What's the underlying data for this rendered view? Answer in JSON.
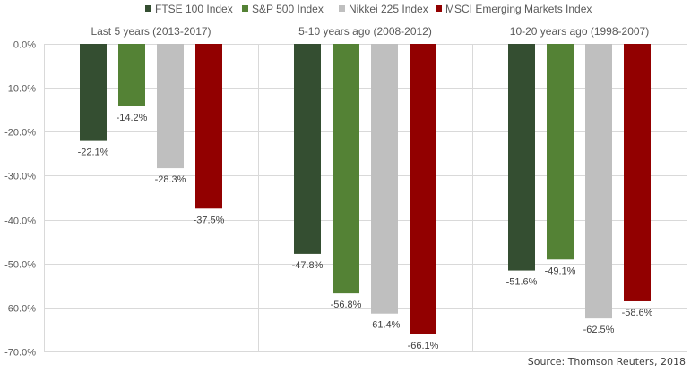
{
  "chart_data": {
    "type": "bar",
    "title": "",
    "xlabel": "",
    "ylabel": "",
    "ylim": [
      -70,
      0
    ],
    "yticks": [
      0,
      -10,
      -20,
      -30,
      -40,
      -50,
      -60,
      -70
    ],
    "ytick_labels": [
      "0.0%",
      "-10.0%",
      "-20.0%",
      "-30.0%",
      "-40.0%",
      "-50.0%",
      "-60.0%",
      "-70.0%"
    ],
    "grid": true,
    "legend_position": "top",
    "categories": [
      "Last 5 years (2013-2017)",
      "5-10 years ago (2008-2012)",
      "10-20 years ago (1998-2007)"
    ],
    "series": [
      {
        "name": "FTSE 100 Index",
        "color": "#344e31",
        "values": [
          -22.1,
          -47.8,
          -51.6
        ],
        "labels": [
          "-22.1%",
          "-47.8%",
          "-51.6%"
        ]
      },
      {
        "name": "S&P 500 Index",
        "color": "#548235",
        "values": [
          -14.2,
          -56.8,
          -49.1
        ],
        "labels": [
          "-14.2%",
          "-56.8%",
          "-49.1%"
        ]
      },
      {
        "name": "Nikkei 225 Index",
        "color": "#bfbfbf",
        "values": [
          -28.3,
          -61.4,
          -62.5
        ],
        "labels": [
          "-28.3%",
          "-61.4%",
          "-62.5%"
        ]
      },
      {
        "name": "MSCI Emerging Markets Index",
        "color": "#920000",
        "values": [
          -37.5,
          -66.1,
          -58.6
        ],
        "labels": [
          "-37.5%",
          "-66.1%",
          "-58.6%"
        ]
      }
    ]
  },
  "source": "Source: Thomson Reuters, 2018"
}
